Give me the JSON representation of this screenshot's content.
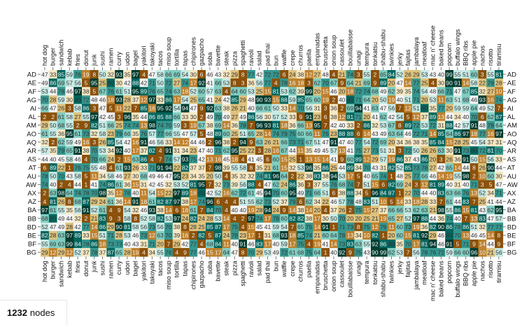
{
  "footer": {
    "count": "1232",
    "label": "nodes"
  },
  "colors": {
    "low": "#8c510a",
    "mid_low": "#dfc27d",
    "mid": "#f5f5f5",
    "mid_high": "#80cdc1",
    "high": "#01665e",
    "max": "#003c30"
  },
  "chart_data": {
    "type": "heatmap",
    "title": "",
    "xlabel": "",
    "ylabel": "",
    "x_categories": [
      "hot dog",
      "burger",
      "sandwich",
      "kebab",
      "fries",
      "donut",
      "junk",
      "sushi",
      "ramen",
      "curry",
      "udon",
      "bagel",
      "yakitori",
      "takoyaki",
      "tacos",
      "miso soup",
      "tortilla",
      "tapas",
      "chipirones",
      "gazpacho",
      "soba",
      "bavette",
      "steak",
      "pizza",
      "spaghetti",
      "ravioli",
      "salad",
      "pad thai",
      "bun",
      "waffle",
      "crepe",
      "churros",
      "paella",
      "empanadas",
      "bruschetta",
      "onion soup",
      "cassoulet",
      "bouillabaisse",
      "unagi",
      "tempura",
      "tonkatsu",
      "shabu-shabu",
      "twinkies",
      "jerky",
      "fajitas",
      "jambalaya",
      "meatloaf",
      "mac n' cheese",
      "baked beans",
      "popcorn",
      "buffalo wings",
      "BBQ ribs",
      "apple pie",
      "nachos",
      "risotto",
      "tiramisu"
    ],
    "y_categories": [
      "AD",
      "AE",
      "AF",
      "AG",
      "AI",
      "AL",
      "AM",
      "AO",
      "AQ",
      "AR",
      "AS",
      "AT",
      "AU",
      "AW",
      "AX",
      "AZ",
      "BA",
      "BB",
      "BD",
      "BE",
      "BF",
      "BG"
    ],
    "value_range": [
      0,
      100
    ],
    "color_scale": [
      "#8c510a",
      "#bf812d",
      "#dfc27d",
      "#f6e8c3",
      "#f5f5f5",
      "#c7eae5",
      "#80cdc1",
      "#35978f",
      "#01665e",
      "#003c30"
    ],
    "values": [
      [
        47,
        33,
        85,
        59,
        76,
        19,
        8,
        50,
        32,
        93,
        35,
        97,
        4,
        47,
        58,
        66,
        69,
        54,
        30,
        6,
        46,
        43,
        32,
        29,
        8,
        77,
        42,
        72,
        72,
        6,
        24,
        38,
        12,
        27,
        48,
        4,
        21,
        74,
        3,
        55,
        2,
        65,
        84,
        52,
        26,
        29,
        53,
        43,
        40,
        99,
        55,
        51,
        60,
        3,
        55,
        81
      ],
      [
        49,
        86,
        69,
        57,
        56,
        5,
        95,
        25,
        80,
        30,
        42,
        88,
        42,
        71,
        50,
        72,
        27,
        74,
        17,
        92,
        41,
        66,
        53,
        8,
        3,
        36,
        56,
        77,
        4,
        78,
        16,
        18,
        3,
        62,
        70,
        67,
        9,
        64,
        21,
        69,
        9,
        89,
        20,
        47,
        14,
        77,
        25,
        4,
        30,
        90,
        91,
        14,
        58,
        22,
        79,
        28
      ],
      [
        53,
        44,
        78,
        46,
        97,
        38,
        5,
        67,
        76,
        61,
        51,
        95,
        89,
        76,
        65,
        74,
        63,
        18,
        52,
        60,
        57,
        63,
        4,
        64,
        60,
        53,
        25,
        15,
        81,
        53,
        62,
        39,
        99,
        20,
        15,
        46,
        20,
        18,
        72,
        74,
        68,
        49,
        62,
        39,
        35,
        74,
        54,
        48,
        66,
        71,
        47,
        67,
        85,
        32,
        27,
        10
      ],
      [
        70,
        28,
        59,
        30,
        80,
        72,
        48,
        46,
        18,
        93,
        28,
        37,
        12,
        97,
        33,
        86,
        17,
        54,
        25,
        65,
        41,
        24,
        42,
        85,
        29,
        48,
        90,
        93,
        15,
        88,
        59,
        85,
        65,
        60,
        19,
        2,
        40,
        80,
        71,
        64,
        20,
        50,
        19,
        40,
        51,
        71,
        20,
        53,
        11,
        63,
        51,
        68,
        46,
        93,
        16,
        74
      ],
      [
        66,
        47,
        26,
        3,
        58,
        86,
        3,
        47,
        5,
        11,
        22,
        7,
        85,
        16,
        95,
        92,
        54,
        94,
        47,
        9,
        92,
        63,
        38,
        26,
        21,
        40,
        66,
        61,
        50,
        33,
        14,
        70,
        56,
        31,
        3,
        36,
        2,
        69,
        94,
        41,
        63,
        47,
        56,
        7,
        12,
        51,
        80,
        35,
        77,
        20,
        59,
        59,
        64,
        49,
        52,
        7
      ],
      [
        2,
        2,
        61,
        58,
        27,
        55,
        97,
        42,
        45,
        3,
        96,
        35,
        44,
        86,
        85,
        88,
        66,
        33,
        30,
        2,
        49,
        70,
        49,
        27,
        49,
        86,
        56,
        30,
        57,
        52,
        33,
        9,
        91,
        23,
        6,
        38,
        12,
        81,
        71,
        20,
        41,
        62,
        42,
        54,
        5,
        12,
        37,
        89,
        13,
        44,
        34,
        40,
        70,
        6,
        62,
        87
      ],
      [
        29,
        50,
        68,
        55,
        2,
        9,
        82,
        51,
        66,
        25,
        74,
        74,
        13,
        98,
        74,
        70,
        59,
        3,
        19,
        67,
        38,
        69,
        14,
        36,
        78,
        7,
        96,
        93,
        81,
        18,
        36,
        66,
        13,
        95,
        7,
        42,
        40,
        33,
        2,
        86,
        32,
        53,
        67,
        8,
        89,
        72,
        53,
        72,
        31,
        88,
        42,
        57,
        91,
        48,
        78,
        64
      ],
      [
        61,
        55,
        36,
        95,
        61,
        73,
        32,
        58,
        23,
        79,
        66,
        35,
        76,
        57,
        77,
        66,
        55,
        47,
        57,
        5,
        48,
        89,
        60,
        25,
        51,
        65,
        28,
        14,
        74,
        79,
        75,
        60,
        66,
        11,
        76,
        23,
        88,
        88,
        6,
        14,
        43,
        49,
        63,
        64,
        46,
        72,
        71,
        14,
        85,
        64,
        86,
        97,
        18,
        77,
        16,
        97
      ],
      [
        32,
        2,
        62,
        59,
        49,
        16,
        3,
        26,
        85,
        54,
        42,
        16,
        91,
        46,
        56,
        33,
        14,
        12,
        44,
        46,
        2,
        96,
        38,
        2,
        94,
        9,
        63,
        26,
        21,
        66,
        73,
        71,
        67,
        51,
        47,
        91,
        47,
        40,
        77,
        54,
        72,
        69,
        20,
        34,
        36,
        38,
        35,
        85,
        84,
        15,
        28,
        25,
        45,
        54,
        37,
        31
      ],
      [
        57,
        35,
        79,
        65,
        91,
        38,
        70,
        53,
        34,
        92,
        40,
        17,
        37,
        82,
        4,
        91,
        31,
        34,
        23,
        47,
        40,
        71,
        62,
        95,
        25,
        22,
        3,
        28,
        16,
        67,
        44,
        11,
        35,
        49,
        45,
        57,
        13,
        41,
        75,
        27,
        73,
        51,
        31,
        3,
        72,
        50,
        26,
        26,
        63,
        30,
        91,
        73,
        80,
        72,
        81,
        70
      ],
      [
        44,
        40,
        45,
        58,
        46,
        4,
        70,
        66,
        24,
        2,
        15,
        63,
        86,
        4,
        7,
        74,
        57,
        93,
        75,
        42,
        13,
        16,
        45,
        18,
        4,
        41,
        45,
        6,
        60,
        15,
        25,
        1,
        13,
        15,
        14,
        41,
        9,
        60,
        89,
        12,
        29,
        57,
        19,
        86,
        37,
        43,
        86,
        20,
        3,
        26,
        36,
        91,
        50,
        15,
        56,
        33
      ],
      [
        6,
        89,
        22,
        1,
        76,
        75,
        55,
        48,
        4,
        61,
        93,
        26,
        33,
        71,
        91,
        94,
        22,
        82,
        37,
        37,
        7,
        98,
        39,
        55,
        58,
        8,
        35,
        21,
        61,
        15,
        32,
        53,
        96,
        35,
        86,
        25,
        44,
        89,
        34,
        70,
        43,
        31,
        82,
        52,
        85,
        73,
        78,
        27,
        42,
        65,
        14,
        44,
        8,
        26,
        90,
        44
      ],
      [
        78,
        50,
        70,
        43,
        58,
        5,
        11,
        34,
        58,
        46,
        27,
        30,
        68,
        49,
        46,
        47,
        95,
        23,
        34,
        35,
        20,
        50,
        4,
        35,
        32,
        32,
        74,
        81,
        96,
        64,
        2,
        22,
        38,
        83,
        38,
        94,
        53,
        17,
        5,
        40,
        65,
        74,
        1,
        48,
        25,
        77,
        66,
        46,
        14,
        19,
        55,
        98,
        2,
        10,
        60,
        30
      ],
      [
        74,
        40,
        2,
        4,
        44,
        1,
        41,
        74,
        86,
        61,
        36,
        15,
        31,
        42,
        45,
        32,
        53,
        52,
        81,
        95,
        7,
        32,
        73,
        39,
        56,
        88,
        4,
        47,
        62,
        24,
        86,
        36,
        3,
        37,
        55,
        76,
        68,
        74,
        7,
        51,
        15,
        6,
        82,
        69,
        24,
        3,
        12,
        81,
        89,
        40,
        31,
        40,
        71,
        3,
        5,
        47
      ],
      [
        2,
        63,
        98,
        64,
        74,
        78,
        70,
        98,
        35,
        12,
        76,
        40,
        11,
        54,
        15,
        22,
        97,
        89,
        18,
        80,
        42,
        52,
        16,
        62,
        72,
        61,
        45,
        94,
        70,
        60,
        95,
        49,
        71,
        66,
        51,
        6,
        38,
        88,
        34,
        5,
        96,
        84,
        87,
        1,
        22,
        70,
        44,
        40,
        83,
        63,
        66,
        76,
        13,
        52,
        34,
        71
      ],
      [
        4,
        81,
        26,
        8,
        68,
        87,
        29,
        24,
        61,
        36,
        14,
        91,
        18,
        61,
        82,
        87,
        97,
        38,
        17,
        74,
        96,
        6,
        4,
        4,
        51,
        55,
        62,
        73,
        52,
        37,
        79,
        6,
        62,
        34,
        22,
        46,
        57,
        78,
        48,
        83,
        51,
        10,
        5,
        14,
        33,
        18,
        28,
        33,
        7,
        61,
        44,
        83,
        7,
        25,
        41,
        44
      ],
      [
        97,
        61,
        55,
        35,
        56,
        91,
        52,
        61,
        4,
        9,
        54,
        32,
        46,
        93,
        38,
        14,
        6,
        18,
        61,
        7,
        84,
        70,
        4,
        40,
        40,
        19,
        28,
        94,
        24,
        9,
        14,
        38,
        14,
        20,
        4,
        37,
        26,
        2,
        75,
        15,
        27,
        37,
        66,
        66,
        53,
        62,
        63,
        21,
        98,
        55,
        86,
        15,
        81,
        43,
        62,
        95
      ],
      [
        68,
        80,
        49,
        44,
        32,
        2,
        21,
        83,
        9,
        3,
        58,
        8,
        52,
        58,
        82,
        53,
        97,
        24,
        82,
        24,
        28,
        53,
        14,
        4,
        2,
        97,
        74,
        17,
        78,
        60,
        82,
        82,
        38,
        17,
        30,
        50,
        70,
        20,
        20,
        25,
        21,
        19,
        65,
        27,
        52,
        97,
        88,
        44,
        36,
        74,
        40,
        7,
        13,
        83,
        47,
        57
      ],
      [
        52,
        47,
        49,
        28,
        42,
        77,
        14,
        86,
        29,
        90,
        81,
        58,
        56,
        73,
        56,
        70,
        38,
        8,
        28,
        25,
        85,
        87,
        17,
        75,
        4,
        15,
        45,
        41,
        59,
        54,
        7,
        65,
        75,
        14,
        91,
        1,
        71,
        73,
        8,
        75,
        12,
        79,
        11,
        60,
        73,
        19,
        36,
        82,
        90,
        86,
        78,
        86,
        51,
        32,
        77,
        77
      ],
      [
        82,
        28,
        63,
        97,
        89,
        33,
        15,
        51,
        71,
        28,
        53,
        46,
        73,
        12,
        63,
        70,
        39,
        16,
        2,
        82,
        5,
        87,
        24,
        78,
        23,
        17,
        1,
        31,
        68,
        93,
        18,
        85,
        74,
        21,
        60,
        64,
        78,
        13,
        34,
        10,
        82,
        1,
        20,
        60,
        15,
        81,
        92,
        29,
        46,
        80,
        70,
        13,
        46,
        45,
        14,
        8
      ],
      [
        55,
        69,
        63,
        99,
        84,
        78,
        86,
        18,
        73,
        73,
        40,
        43,
        31,
        71,
        20,
        7,
        29,
        42,
        77,
        4,
        68,
        84,
        11,
        40,
        91,
        46,
        83,
        17,
        40,
        59,
        17,
        75,
        4,
        19,
        41,
        14,
        73,
        83,
        63,
        55,
        92,
        86,
        80,
        35,
        70,
        17,
        81,
        94,
        46,
        91,
        5,
        71,
        9,
        14,
        44,
        9
      ],
      [
        29,
        12,
        29,
        12,
        52,
        37,
        78,
        37,
        87,
        65,
        28,
        19,
        4,
        34,
        55,
        76,
        4,
        9,
        77,
        46,
        15,
        17,
        64,
        47,
        8,
        70,
        29,
        53,
        49,
        72,
        61,
        68,
        75,
        64,
        1,
        40,
        92,
        9,
        75,
        43,
        90,
        99,
        62,
        53,
        7,
        56,
        78,
        76,
        72,
        59,
        66,
        60,
        96,
        10,
        21,
        56
      ]
    ]
  }
}
